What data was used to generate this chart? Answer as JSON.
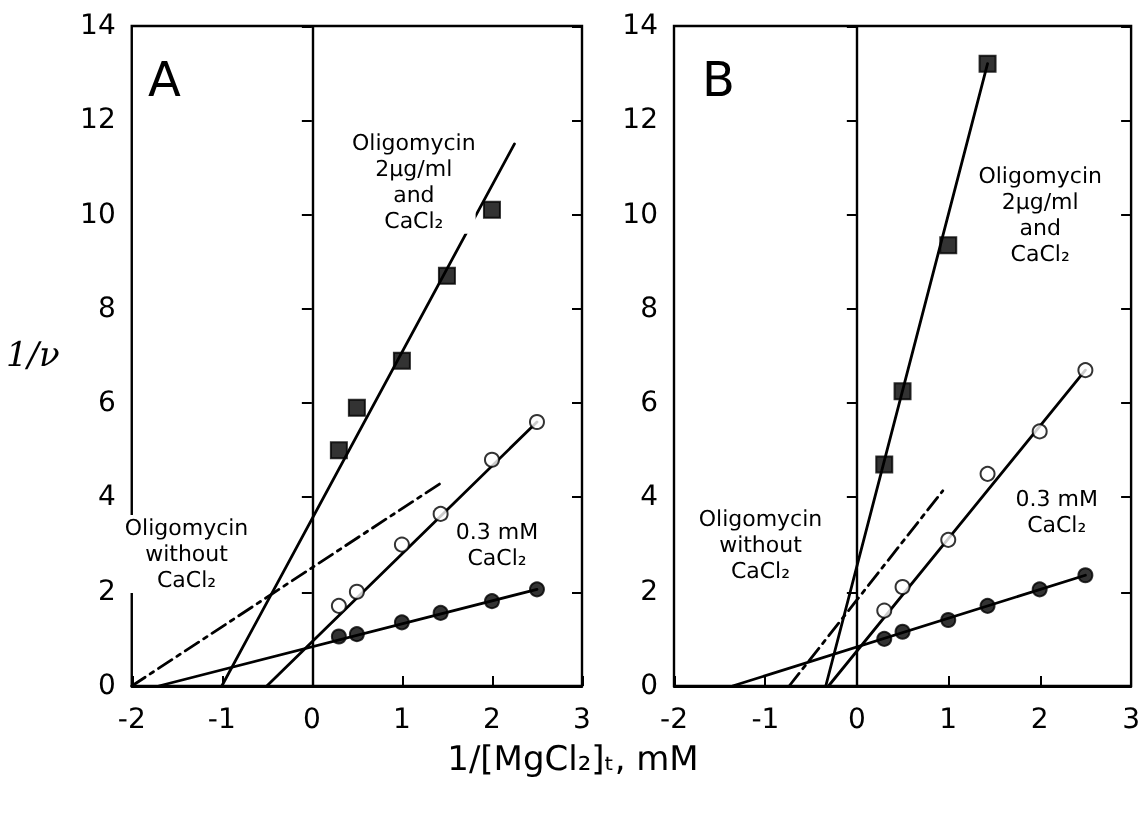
{
  "chart_data": [
    {
      "type": "scatter",
      "xlabel": "1/[MgCl₂]ₜ, mM",
      "ylabel": "1/ν",
      "xlim": [
        -2,
        3
      ],
      "ylim": [
        0,
        14
      ],
      "xticks": [
        -2,
        -1,
        0,
        1,
        2,
        3
      ],
      "yticks": [
        0,
        2,
        4,
        6,
        8,
        10,
        12,
        14
      ],
      "ref_lines": [
        {
          "axis": "x",
          "value": 0
        }
      ],
      "annotations": [
        "A",
        "Oligomycin\n2μg/ml\nand\nCaCl₂",
        "0.3 mM\nCaCl₂",
        "Oligomycin\nwithout\nCaCl₂"
      ],
      "series": [
        {
          "marker": "square",
          "color": "#000000",
          "x": [
            0.3,
            0.5,
            1,
            1.5,
            2
          ],
          "values": [
            5.0,
            5.9,
            6.9,
            8.7,
            10.1
          ]
        },
        {
          "type": "line",
          "marker": "none",
          "color": "#000000",
          "x": [
            -1,
            2.25
          ],
          "values": [
            0,
            11.5
          ]
        },
        {
          "marker": "circle",
          "color": "#ffffff",
          "x": [
            0.3,
            0.5,
            1,
            1.43,
            2,
            2.5
          ],
          "values": [
            1.7,
            2.0,
            3.0,
            3.65,
            4.8,
            5.6
          ]
        },
        {
          "type": "line",
          "marker": "none",
          "color": "#000000",
          "x": [
            -0.5,
            2.5
          ],
          "values": [
            0,
            5.6
          ]
        },
        {
          "marker": "circle",
          "color": "#000000",
          "x": [
            0.3,
            0.5,
            1,
            1.43,
            2,
            2.5
          ],
          "values": [
            1.05,
            1.1,
            1.35,
            1.55,
            1.8,
            2.05
          ]
        },
        {
          "type": "line",
          "marker": "none",
          "color": "#000000",
          "x": [
            -1.7,
            2.5
          ],
          "values": [
            0,
            2.05
          ]
        },
        {
          "type": "line",
          "marker": "none",
          "line_style": "dashed",
          "color": "#000000",
          "x": [
            -2,
            1.43
          ],
          "values": [
            0,
            4.3
          ]
        }
      ]
    },
    {
      "type": "scatter",
      "xlim": [
        -2,
        3
      ],
      "ylim": [
        0,
        14
      ],
      "xticks": [
        -2,
        -1,
        0,
        1,
        2,
        3
      ],
      "yticks": [
        0,
        2,
        4,
        6,
        8,
        10,
        12,
        14
      ],
      "ref_lines": [
        {
          "axis": "x",
          "value": 0
        }
      ],
      "annotations": [
        "B",
        "Oligomycin\n2μg/ml\nand\nCaCl₂",
        "0.3 mM\nCaCl₂",
        "Oligomycin\nwithout\nCaCl₂"
      ],
      "series": [
        {
          "marker": "square",
          "color": "#000000",
          "x": [
            0.3,
            0.5,
            1,
            1.43
          ],
          "values": [
            4.7,
            6.25,
            9.35,
            13.2
          ]
        },
        {
          "type": "line",
          "marker": "none",
          "color": "#000000",
          "x": [
            -0.34,
            1.43
          ],
          "values": [
            0,
            13.2
          ]
        },
        {
          "marker": "circle",
          "color": "#ffffff",
          "x": [
            0.3,
            0.5,
            1,
            1.43,
            2,
            2.5
          ],
          "values": [
            1.6,
            2.1,
            3.1,
            4.5,
            5.4,
            6.7
          ]
        },
        {
          "type": "line",
          "marker": "none",
          "color": "#000000",
          "x": [
            -0.31,
            2.5
          ],
          "values": [
            0,
            6.7
          ]
        },
        {
          "marker": "circle",
          "color": "#000000",
          "x": [
            0.3,
            0.5,
            1,
            1.43,
            2,
            2.5
          ],
          "values": [
            1.0,
            1.15,
            1.4,
            1.7,
            2.05,
            2.35
          ]
        },
        {
          "type": "line",
          "marker": "none",
          "color": "#000000",
          "x": [
            -1.36,
            2.5
          ],
          "values": [
            0,
            2.35
          ]
        },
        {
          "type": "line",
          "marker": "none",
          "line_style": "dashed",
          "color": "#000000",
          "x": [
            -0.74,
            0.94
          ],
          "values": [
            0,
            4.14
          ]
        }
      ]
    }
  ]
}
